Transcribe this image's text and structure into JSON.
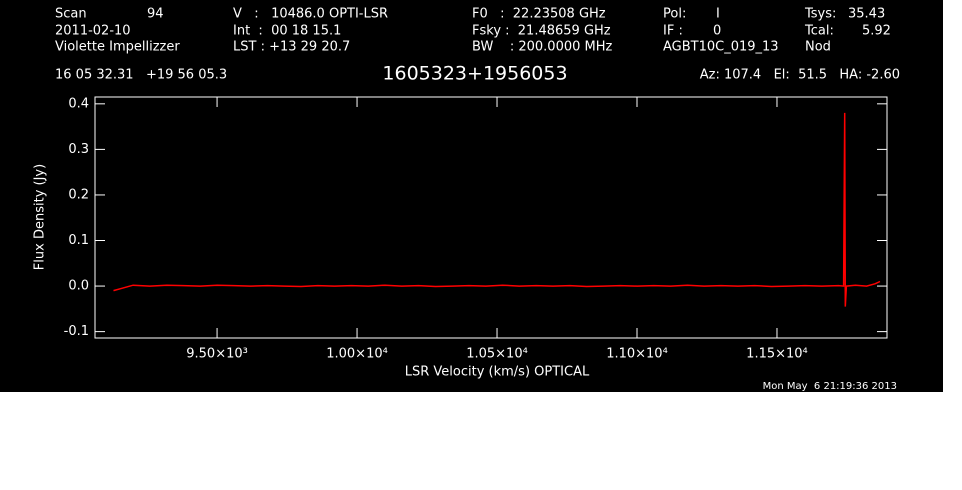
{
  "header": [
    "Scan",
    "94",
    "V   :   10486.0 OPTI-LSR",
    "F0   :  22.23508 GHz",
    "Pol:",
    "I",
    "Tsys:",
    "35.43",
    "2011-02-10",
    "Int  :  00 18 15.1",
    "Fsky :  21.48659 GHz",
    "IF :",
    "0",
    "Tcal:",
    "5.92",
    "Violette Impellizzer",
    "LST : +13 29 20.7",
    "BW    : 200.0000 MHz",
    "AGBT10C_019_13",
    "Nod",
    "16 05 32.31   +19 56 05.3",
    "Az: 107.4   El:  51.5   HA: -2.60",
    "Mon May  6 21:19:36 2013"
  ],
  "chart_data": {
    "type": "line",
    "title": "1605323+1956053",
    "x_label": "LSR Velocity (km/s) OPTICAL",
    "y_label": "Flux Density (Jy)",
    "xlim": [
      9064,
      11893
    ],
    "ylim": [
      -0.114,
      0.415
    ],
    "xticks": [
      {
        "value": 9500,
        "label": "9.50×10³"
      },
      {
        "value": 10000,
        "label": "1.00×10⁴"
      },
      {
        "value": 10500,
        "label": "1.05×10⁴"
      },
      {
        "value": 11000,
        "label": "1.10×10⁴"
      },
      {
        "value": 11500,
        "label": "1.15×10⁴"
      }
    ],
    "yticks": [
      -0.1,
      {
        "value": 0,
        "label": "0.0"
      },
      0.1,
      0.2,
      0.3,
      0.4
    ],
    "series": [
      {
        "color": "#ff0000",
        "x": [
          9130,
          9160,
          9200,
          9260,
          9320,
          9380,
          9440,
          9500,
          9560,
          9620,
          9680,
          9740,
          9800,
          9860,
          9920,
          9980,
          10040,
          10100,
          10160,
          10220,
          10280,
          10340,
          10400,
          10460,
          10520,
          10580,
          10640,
          10700,
          10760,
          10820,
          10880,
          10940,
          11000,
          11060,
          11120,
          11180,
          11240,
          11300,
          11360,
          11420,
          11480,
          11540,
          11600,
          11660,
          11720,
          11738,
          11742,
          11744,
          11748,
          11780,
          11820,
          11850,
          11868
        ],
        "values": [
          -0.01,
          -0.005,
          0.002,
          0.0,
          0.002,
          0.001,
          0.0,
          0.002,
          0.001,
          0.0,
          0.001,
          0.0,
          -0.001,
          0.001,
          0.0,
          0.001,
          0.0,
          0.002,
          0.0,
          0.001,
          -0.001,
          0.0,
          0.001,
          0.0,
          0.002,
          0.0,
          0.001,
          0.0,
          0.001,
          -0.001,
          0.0,
          0.001,
          0.0,
          0.001,
          0.0,
          0.002,
          0.0,
          0.001,
          0.0,
          0.001,
          -0.001,
          0.0,
          0.001,
          0.0,
          0.001,
          0.0,
          0.38,
          -0.045,
          0.0,
          0.002,
          0.0,
          0.005,
          0.01
        ]
      }
    ]
  }
}
